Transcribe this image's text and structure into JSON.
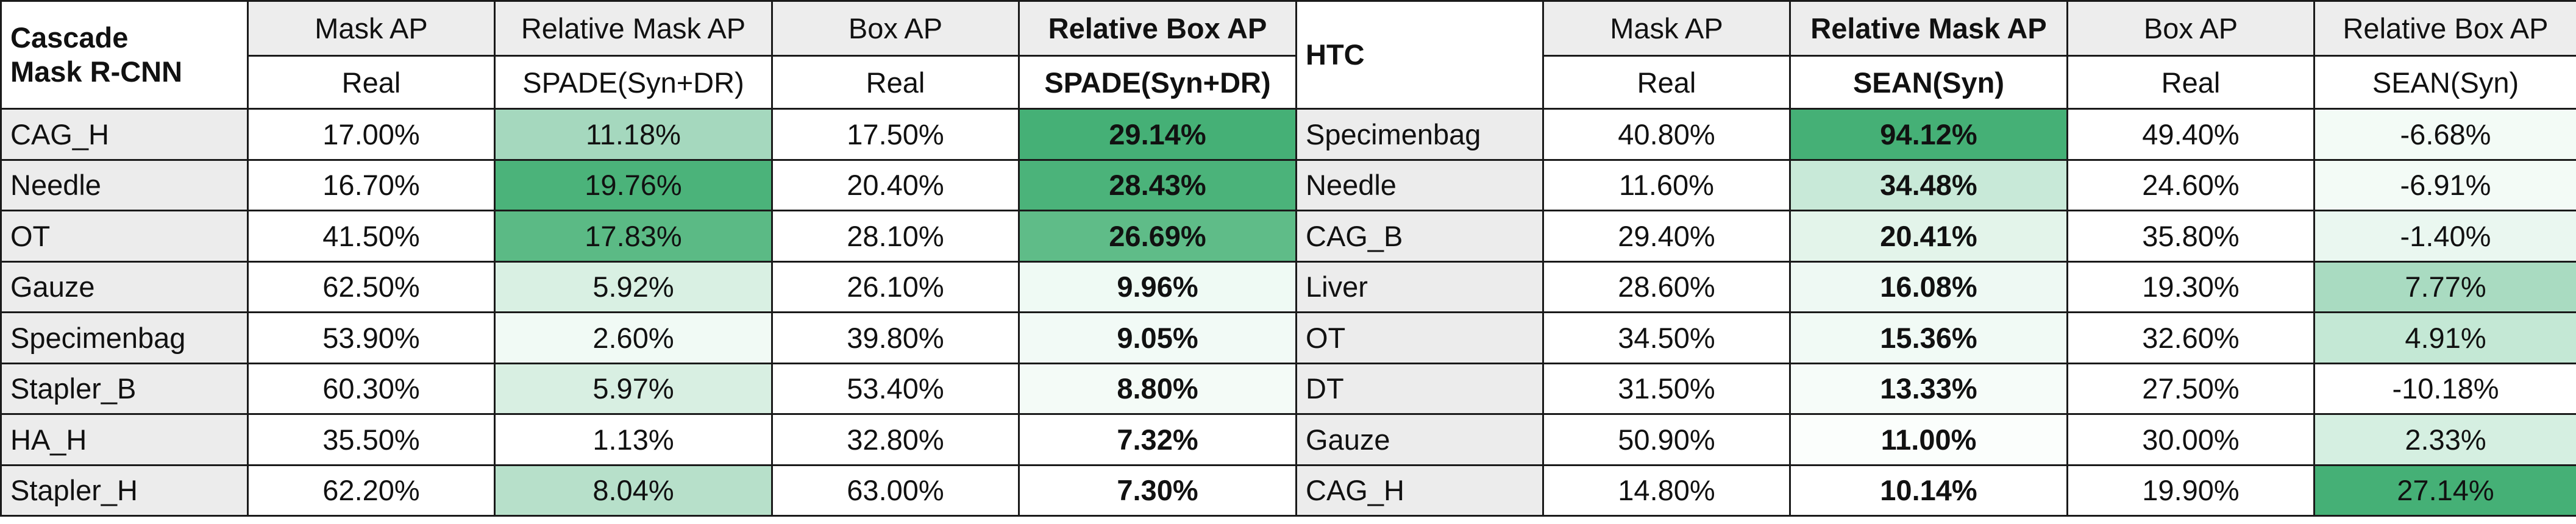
{
  "left_table": {
    "corner": {
      "line1": "Cascade",
      "line2": "Mask R-CNN"
    },
    "headers": [
      "Mask AP",
      "Relative Mask AP",
      "Box AP",
      "Relative Box AP"
    ],
    "subheaders": [
      "Real",
      "SPADE(Syn+DR)",
      "Real",
      "SPADE(Syn+DR)"
    ],
    "header_bold": [
      false,
      false,
      false,
      true
    ],
    "rows": [
      {
        "label": "CAG_H",
        "values": [
          "17.00%",
          "11.18%",
          "17.50%",
          "29.14%"
        ]
      },
      {
        "label": "Needle",
        "values": [
          "16.70%",
          "19.76%",
          "20.40%",
          "28.43%"
        ]
      },
      {
        "label": "OT",
        "values": [
          "41.50%",
          "17.83%",
          "28.10%",
          "26.69%"
        ]
      },
      {
        "label": "Gauze",
        "values": [
          "62.50%",
          "5.92%",
          "26.10%",
          "9.96%"
        ]
      },
      {
        "label": "Specimenbag",
        "values": [
          "53.90%",
          "2.60%",
          "39.80%",
          "9.05%"
        ]
      },
      {
        "label": "Stapler_B",
        "values": [
          "60.30%",
          "5.97%",
          "53.40%",
          "8.80%"
        ]
      },
      {
        "label": "HA_H",
        "values": [
          "35.50%",
          "1.13%",
          "32.80%",
          "7.32%"
        ]
      },
      {
        "label": "Stapler_H",
        "values": [
          "62.20%",
          "8.04%",
          "63.00%",
          "7.30%"
        ]
      }
    ]
  },
  "right_table": {
    "corner": {
      "line1": "HTC"
    },
    "headers": [
      "Mask AP",
      "Relative Mask AP",
      "Box AP",
      "Relative Box AP"
    ],
    "subheaders": [
      "Real",
      "SEAN(Syn)",
      "Real",
      "SEAN(Syn)"
    ],
    "header_bold": [
      false,
      true,
      false,
      false
    ],
    "rows": [
      {
        "label": "Specimenbag",
        "values": [
          "40.80%",
          "94.12%",
          "49.40%",
          "-6.68%"
        ]
      },
      {
        "label": "Needle",
        "values": [
          "11.60%",
          "34.48%",
          "24.60%",
          "-6.91%"
        ]
      },
      {
        "label": "CAG_B",
        "values": [
          "29.40%",
          "20.41%",
          "35.80%",
          "-1.40%"
        ]
      },
      {
        "label": "Liver",
        "values": [
          "28.60%",
          "16.08%",
          "19.30%",
          "7.77%"
        ]
      },
      {
        "label": "OT",
        "values": [
          "34.50%",
          "15.36%",
          "32.60%",
          "4.91%"
        ]
      },
      {
        "label": "DT",
        "values": [
          "31.50%",
          "13.33%",
          "27.50%",
          "-10.18%"
        ]
      },
      {
        "label": "Gauze",
        "values": [
          "50.90%",
          "11.00%",
          "30.00%",
          "2.33%"
        ]
      },
      {
        "label": "CAG_H",
        "values": [
          "14.80%",
          "10.14%",
          "19.90%",
          "27.14%"
        ]
      }
    ]
  },
  "colors": {
    "header_gray": "#ededed",
    "label_gray": "#ececec",
    "border": "#1a1a1a",
    "left_rel_mask": [
      "#a5d8be",
      "#4bb37a",
      "#5bba85",
      "#d9f0e3",
      "#f1faf5",
      "#d8efe2",
      "#ffffff",
      "#b7e0ca"
    ],
    "left_rel_box": [
      "#45b076",
      "#4bb37a",
      "#5fbc88",
      "#effaf4",
      "#f2faf6",
      "#f4fbf7",
      "#ffffff",
      "#ffffff"
    ],
    "right_rel_mask": [
      "#45b076",
      "#c8e9d8",
      "#e3f4ea",
      "#eef9f3",
      "#f1faf5",
      "#f6fcf9",
      "#fbfefc",
      "#ffffff"
    ],
    "right_rel_box": [
      "#f3fbf6",
      "#f3fbf6",
      "#eaf7f0",
      "#a9dbc1",
      "#c4e8d5",
      "#ffffff",
      "#d5efe1",
      "#45b076"
    ]
  }
}
